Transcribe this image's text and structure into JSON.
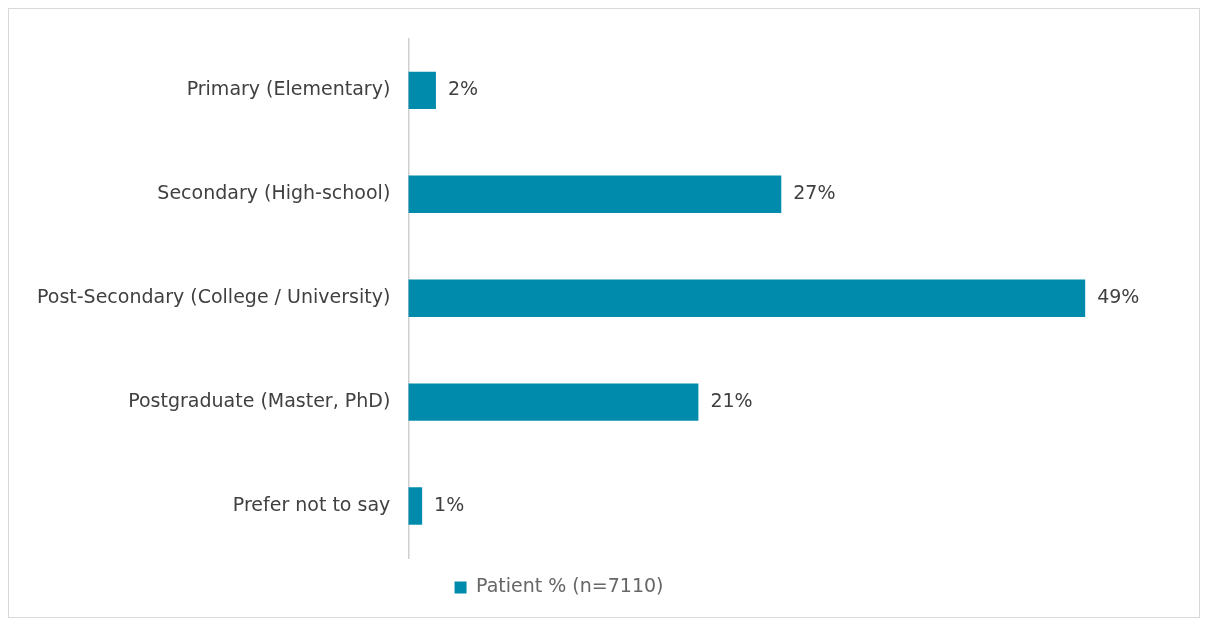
{
  "chart_data": {
    "type": "bar",
    "orientation": "horizontal",
    "categories": [
      "Primary (Elementary)",
      "Secondary (High-school)",
      "Post-Secondary (College / University)",
      "Postgraduate (Master, PhD)",
      "Prefer not to say"
    ],
    "series": [
      {
        "name": "Patient % (n=7110)",
        "color": "#008bad",
        "values": [
          2,
          27,
          49,
          21,
          1
        ],
        "value_labels": [
          "2%",
          "27%",
          "49%",
          "21%",
          "1%"
        ]
      }
    ],
    "legend": "bottom",
    "tick_labels": "y"
  }
}
